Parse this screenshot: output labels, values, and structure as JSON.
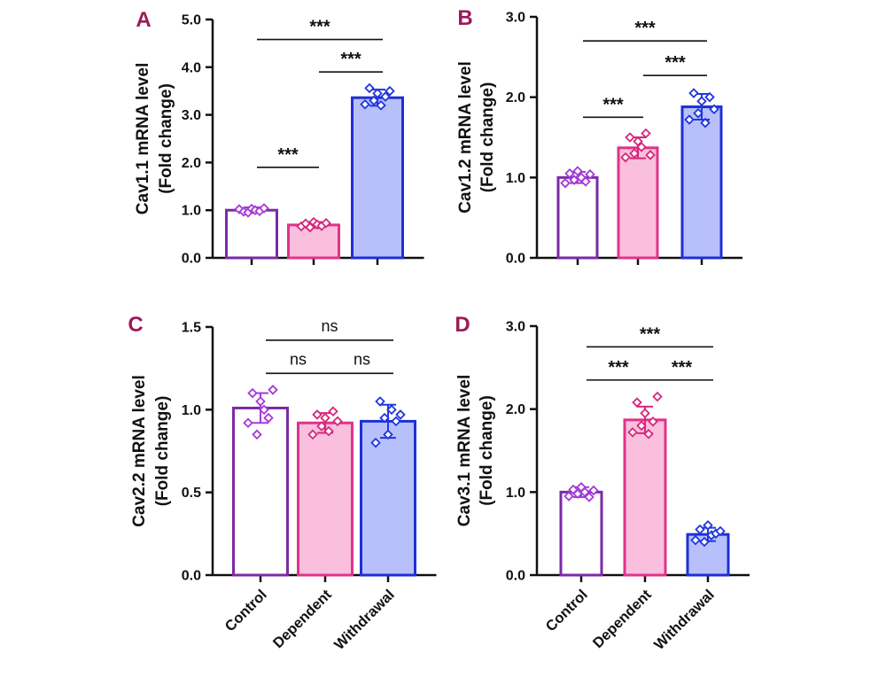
{
  "figure": {
    "panel_letter_color": "#9b1b5a",
    "group_colors": {
      "Control": {
        "edge": "#7b2aa6",
        "fill": "#ffffff",
        "point": "#a43ad8"
      },
      "Dependent": {
        "edge": "#e0338a",
        "fill": "#f9bfdc",
        "point": "#d6267c"
      },
      "Withdrawal": {
        "edge": "#1f2fd6",
        "fill": "#b8c0fb",
        "point": "#2236dc"
      }
    }
  },
  "chart_data": [
    {
      "panel": "A",
      "type": "bar",
      "ylabel": "Cav1.1 mRNA level",
      "ylabel2": "(Fold change)",
      "categories": [
        "Control",
        "Dependent",
        "Withdrawal"
      ],
      "show_category_labels": false,
      "values": [
        1.0,
        0.69,
        3.36
      ],
      "sd": [
        0.06,
        0.06,
        0.17
      ],
      "points": [
        [
          1.02,
          0.97,
          0.95,
          1.03,
          1.0,
          0.98,
          1.04
        ],
        [
          0.66,
          0.72,
          0.64,
          0.75,
          0.7,
          0.67,
          0.73
        ],
        [
          3.22,
          3.56,
          3.3,
          3.45,
          3.2,
          3.38,
          3.5
        ]
      ],
      "ylim": [
        0,
        5
      ],
      "yticks": [
        "0.0",
        "1.0",
        "2.0",
        "3.0",
        "4.0",
        "5.0"
      ],
      "comparisons": [
        {
          "from": 0,
          "to": 2,
          "label": "***",
          "y": 4.58
        },
        {
          "from": 1,
          "to": 2,
          "label": "***",
          "y": 3.9
        },
        {
          "from": 0,
          "to": 1,
          "label": "***",
          "y": 1.9
        }
      ]
    },
    {
      "panel": "B",
      "type": "bar",
      "ylabel": "Cav1.2 mRNA level",
      "ylabel2": "(Fold change)",
      "categories": [
        "Control",
        "Dependent",
        "Withdrawal"
      ],
      "show_category_labels": false,
      "values": [
        1.0,
        1.37,
        1.88
      ],
      "sd": [
        0.07,
        0.13,
        0.16
      ],
      "points": [
        [
          0.93,
          1.05,
          0.97,
          1.08,
          1.0,
          0.95,
          1.04
        ],
        [
          1.25,
          1.5,
          1.3,
          1.45,
          1.38,
          1.55,
          1.28
        ],
        [
          1.72,
          2.05,
          1.8,
          1.95,
          1.68,
          2.0,
          1.85
        ]
      ],
      "ylim": [
        0,
        3
      ],
      "yticks": [
        "0.0",
        "1.0",
        "2.0",
        "3.0"
      ],
      "comparisons": [
        {
          "from": 0,
          "to": 2,
          "label": "***",
          "y": 2.7
        },
        {
          "from": 1,
          "to": 2,
          "label": "***",
          "y": 2.27
        },
        {
          "from": 0,
          "to": 1,
          "label": "***",
          "y": 1.75
        }
      ]
    },
    {
      "panel": "C",
      "type": "bar",
      "ylabel": "Cav2.2 mRNA level",
      "ylabel2": "(Fold change)",
      "categories": [
        "Control",
        "Dependent",
        "Withdrawal"
      ],
      "show_category_labels": true,
      "values": [
        1.01,
        0.92,
        0.93
      ],
      "sd": [
        0.09,
        0.06,
        0.1
      ],
      "points": [
        [
          0.92,
          1.1,
          0.85,
          1.05,
          1.0,
          0.95,
          1.12
        ],
        [
          0.85,
          0.97,
          0.9,
          0.95,
          0.87,
          0.99,
          0.93
        ],
        [
          0.8,
          1.05,
          0.95,
          0.85,
          1.0,
          0.93,
          0.97
        ]
      ],
      "ylim": [
        0,
        1.5
      ],
      "yticks": [
        "0.0",
        "0.5",
        "1.0",
        "1.5"
      ],
      "comparisons": [
        {
          "from": 0,
          "to": 2,
          "label": "ns",
          "y": 1.42
        },
        {
          "from": 0,
          "to": 1,
          "label": "ns",
          "y": 1.22
        },
        {
          "from": 1,
          "to": 2,
          "label": "ns",
          "y": 1.22
        }
      ]
    },
    {
      "panel": "D",
      "type": "bar",
      "ylabel": "Cav3.1 mRNA level",
      "ylabel2": "(Fold change)",
      "categories": [
        "Control",
        "Dependent",
        "Withdrawal"
      ],
      "show_category_labels": true,
      "values": [
        1.0,
        1.87,
        0.49
      ],
      "sd": [
        0.06,
        0.16,
        0.08
      ],
      "points": [
        [
          0.95,
          1.03,
          0.98,
          1.06,
          1.0,
          0.94,
          1.02
        ],
        [
          1.72,
          2.08,
          1.8,
          1.95,
          1.7,
          1.85,
          2.15
        ],
        [
          0.42,
          0.55,
          0.4,
          0.6,
          0.48,
          0.5,
          0.53
        ]
      ],
      "ylim": [
        0,
        3
      ],
      "yticks": [
        "0.0",
        "1.0",
        "2.0",
        "3.0"
      ],
      "comparisons": [
        {
          "from": 0,
          "to": 2,
          "label": "***",
          "y": 2.75
        },
        {
          "from": 0,
          "to": 1,
          "label": "***",
          "y": 2.35
        },
        {
          "from": 1,
          "to": 2,
          "label": "***",
          "y": 2.35
        }
      ]
    }
  ]
}
